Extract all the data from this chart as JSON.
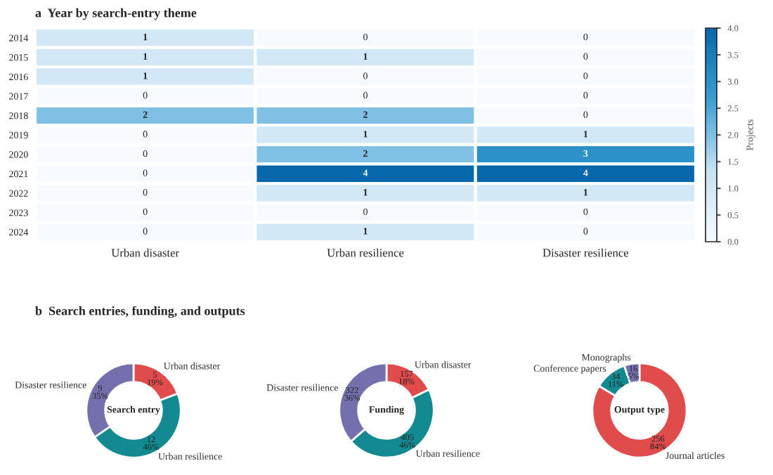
{
  "chart_data": [
    {
      "type": "heatmap",
      "title": "a  Year by search-entry theme",
      "categories": [
        "Urban disaster",
        "Urban resilience",
        "Disaster resilience"
      ],
      "y_categories": [
        "2014",
        "2015",
        "2016",
        "2017",
        "2018",
        "2019",
        "2020",
        "2021",
        "2022",
        "2023",
        "2024"
      ],
      "cells": [
        [
          1,
          0,
          0
        ],
        [
          1,
          1,
          0
        ],
        [
          1,
          0,
          0
        ],
        [
          0,
          0,
          0
        ],
        [
          2,
          2,
          0
        ],
        [
          0,
          1,
          1
        ],
        [
          0,
          2,
          3
        ],
        [
          0,
          4,
          4
        ],
        [
          0,
          1,
          1
        ],
        [
          0,
          0,
          0
        ],
        [
          0,
          1,
          0
        ]
      ],
      "clim": [
        0,
        4
      ],
      "cticks": [
        {
          "value": 0,
          "label": "0.0"
        },
        0.5,
        {
          "value": 1,
          "label": "1.0"
        },
        1.5,
        {
          "value": 2,
          "label": "2.0"
        },
        2.5,
        {
          "value": 3,
          "label": "3.0"
        },
        3.5,
        {
          "value": 4,
          "label": "4.0"
        }
      ],
      "clabel": "Projects",
      "data_labels": true
    },
    {
      "type": "donut",
      "title": "b  Search entries, funding, and outputs",
      "categories": [
        "Urban disaster",
        "Urban resilience",
        "Disaster resilience"
      ],
      "values": [
        5,
        12,
        9
      ],
      "colors": [
        "#e04b4b",
        "#138a91",
        "#7470ae"
      ],
      "value_labels": [
        "5\n19%",
        "12\n46%",
        "9\n35%"
      ],
      "annotations": [
        "Search entry"
      ]
    },
    {
      "type": "donut",
      "categories": [
        "Urban disaster",
        "Urban resilience",
        "Disaster resilience"
      ],
      "values": [
        157,
        405,
        322
      ],
      "colors": [
        "#e04b4b",
        "#138a91",
        "#7470ae"
      ],
      "value_labels": [
        "157\n18%",
        "405\n46%",
        "322\n36%"
      ],
      "annotations": [
        "Funding"
      ]
    },
    {
      "type": "donut",
      "categories": [
        "Journal articles",
        "Conference papers",
        "Monographs"
      ],
      "values": [
        256,
        34,
        16
      ],
      "colors": [
        "#e04b4b",
        "#138a91",
        "#7470ae"
      ],
      "value_labels": [
        "256\n84%",
        "34\n11%",
        "16\n5%"
      ],
      "annotations": [
        "Output type"
      ]
    }
  ]
}
